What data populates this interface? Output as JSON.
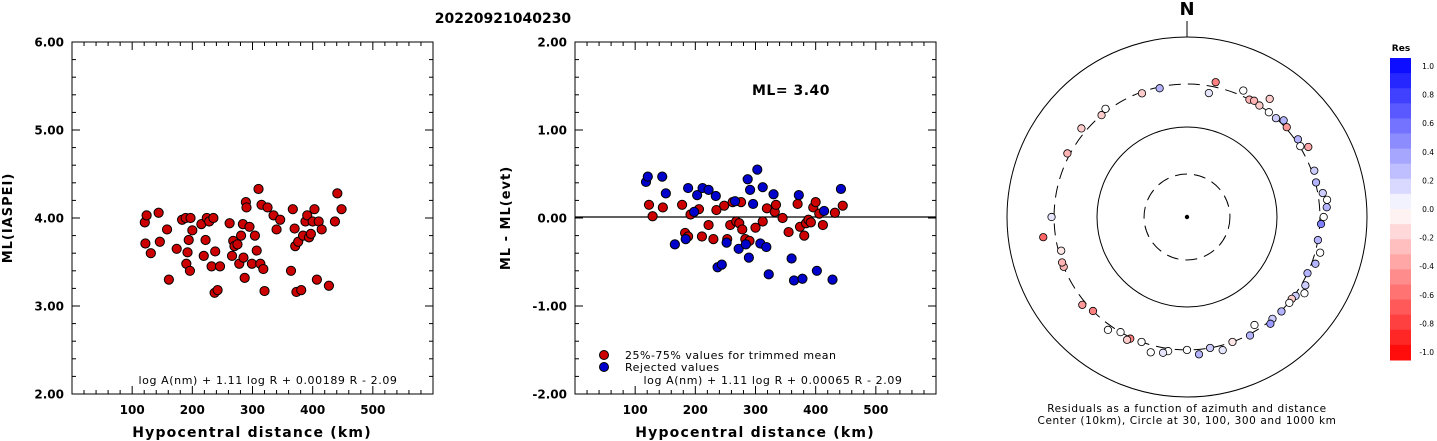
{
  "title": "20220921040230",
  "colors": {
    "accepted": "#cc0000",
    "rejected": "#0000cc"
  },
  "chart_data": [
    {
      "id": "left",
      "type": "scatter",
      "xlabel": "Hypocentral distance (km)",
      "ylabel": "ML(IASPEI)",
      "xlim": [
        0,
        600
      ],
      "ylim": [
        2.0,
        6.0
      ],
      "x_ticks": [
        100,
        200,
        300,
        400,
        500
      ],
      "x_tick_labels": [
        "100",
        "200",
        "300",
        "400",
        "500"
      ],
      "y_ticks": [
        2.0,
        3.0,
        4.0,
        5.0,
        6.0
      ],
      "y_tick_labels": [
        "2.00",
        "3.00",
        "4.00",
        "5.00",
        "6.00"
      ],
      "formula": "log A(nm) + 1.11 log R + 0.00189 R - 2.09",
      "points": [
        [
          121,
          3.95
        ],
        [
          124,
          4.03
        ],
        [
          122,
          3.71
        ],
        [
          131,
          3.6
        ],
        [
          144,
          4.06
        ],
        [
          146,
          3.73
        ],
        [
          158,
          3.87
        ],
        [
          161,
          3.3
        ],
        [
          174,
          3.65
        ],
        [
          183,
          3.98
        ],
        [
          189,
          4.0
        ],
        [
          190,
          3.48
        ],
        [
          192,
          3.61
        ],
        [
          194,
          3.75
        ],
        [
          196,
          3.4
        ],
        [
          197,
          4.0
        ],
        [
          200,
          3.86
        ],
        [
          215,
          3.93
        ],
        [
          219,
          3.57
        ],
        [
          222,
          3.75
        ],
        [
          224,
          4.0
        ],
        [
          228,
          3.96
        ],
        [
          232,
          3.45
        ],
        [
          235,
          4.0
        ],
        [
          237,
          3.15
        ],
        [
          238,
          3.62
        ],
        [
          242,
          3.18
        ],
        [
          246,
          3.45
        ],
        [
          262,
          3.94
        ],
        [
          266,
          3.57
        ],
        [
          268,
          3.74
        ],
        [
          270,
          3.68
        ],
        [
          275,
          3.7
        ],
        [
          278,
          3.48
        ],
        [
          281,
          3.8
        ],
        [
          284,
          3.93
        ],
        [
          285,
          3.55
        ],
        [
          287,
          3.32
        ],
        [
          289,
          4.18
        ],
        [
          290,
          4.12
        ],
        [
          295,
          3.9
        ],
        [
          299,
          3.48
        ],
        [
          304,
          3.8
        ],
        [
          307,
          3.63
        ],
        [
          310,
          4.33
        ],
        [
          313,
          3.48
        ],
        [
          315,
          4.15
        ],
        [
          318,
          3.42
        ],
        [
          320,
          3.17
        ],
        [
          325,
          4.12
        ],
        [
          335,
          4.03
        ],
        [
          340,
          3.87
        ],
        [
          346,
          3.98
        ],
        [
          364,
          3.4
        ],
        [
          367,
          4.1
        ],
        [
          370,
          3.88
        ],
        [
          371,
          3.68
        ],
        [
          373,
          3.16
        ],
        [
          376,
          3.73
        ],
        [
          381,
          3.18
        ],
        [
          384,
          3.8
        ],
        [
          388,
          3.96
        ],
        [
          391,
          4.03
        ],
        [
          394,
          3.78
        ],
        [
          397,
          3.82
        ],
        [
          400,
          3.96
        ],
        [
          403,
          4.1
        ],
        [
          407,
          3.3
        ],
        [
          410,
          3.96
        ],
        [
          415,
          3.87
        ],
        [
          427,
          3.23
        ],
        [
          437,
          3.96
        ],
        [
          441,
          4.28
        ],
        [
          448,
          4.1
        ]
      ]
    },
    {
      "id": "middle",
      "type": "scatter",
      "xlabel": "Hypocentral distance (km)",
      "ylabel": "ML - ML(evt)",
      "xlim": [
        0,
        600
      ],
      "ylim": [
        -2.0,
        2.0
      ],
      "x_ticks": [
        100,
        200,
        300,
        400,
        500
      ],
      "x_tick_labels": [
        "100",
        "200",
        "300",
        "400",
        "500"
      ],
      "y_ticks": [
        -2.0,
        -1.0,
        0.0,
        1.0,
        2.0
      ],
      "y_tick_labels": [
        "-2.00",
        "-1.00",
        "0.00",
        "1.00",
        "2.00"
      ],
      "annotation": "ML= 3.40",
      "formula": "log A(nm) + 1.11 log R + 0.00065 R - 2.09",
      "legend": [
        {
          "label": "25%-75% values for trimmed mean",
          "color": "#cc0000"
        },
        {
          "label": "Rejected values",
          "color": "#0000cc"
        }
      ],
      "series": [
        {
          "name": "25%-75% values for trimmed mean",
          "color": "#cc0000",
          "points": [
            [
              123,
              0.15
            ],
            [
              129,
              0.02
            ],
            [
              146,
              0.12
            ],
            [
              178,
              0.15
            ],
            [
              183,
              -0.17
            ],
            [
              188,
              -0.21
            ],
            [
              192,
              0.04
            ],
            [
              206,
              0.1
            ],
            [
              211,
              -0.21
            ],
            [
              222,
              -0.08
            ],
            [
              230,
              -0.24
            ],
            [
              235,
              0.09
            ],
            [
              248,
              0.14
            ],
            [
              253,
              -0.24
            ],
            [
              258,
              -0.08
            ],
            [
              262,
              0.18
            ],
            [
              268,
              -0.04
            ],
            [
              273,
              -0.06
            ],
            [
              276,
              0.18
            ],
            [
              278,
              -0.13
            ],
            [
              283,
              -0.24
            ],
            [
              290,
              -0.26
            ],
            [
              300,
              -0.11
            ],
            [
              312,
              -0.04
            ],
            [
              319,
              0.11
            ],
            [
              332,
              0.07
            ],
            [
              334,
              0.15
            ],
            [
              345,
              0.0
            ],
            [
              355,
              -0.16
            ],
            [
              370,
              0.16
            ],
            [
              374,
              -0.1
            ],
            [
              381,
              -0.2
            ],
            [
              384,
              -0.06
            ],
            [
              388,
              -0.02
            ],
            [
              392,
              -0.05
            ],
            [
              396,
              0.12
            ],
            [
              400,
              0.18
            ],
            [
              406,
              0.05
            ],
            [
              412,
              -0.08
            ],
            [
              432,
              0.06
            ],
            [
              445,
              0.14
            ]
          ]
        },
        {
          "name": "Rejected values",
          "color": "#0000cc",
          "points": [
            [
              118,
              0.41
            ],
            [
              121,
              0.47
            ],
            [
              145,
              0.47
            ],
            [
              151,
              0.28
            ],
            [
              166,
              -0.3
            ],
            [
              184,
              -0.24
            ],
            [
              188,
              0.34
            ],
            [
              198,
              0.07
            ],
            [
              203,
              0.26
            ],
            [
              212,
              0.34
            ],
            [
              222,
              0.32
            ],
            [
              234,
              0.25
            ],
            [
              237,
              -0.56
            ],
            [
              244,
              -0.53
            ],
            [
              252,
              -0.28
            ],
            [
              266,
              0.19
            ],
            [
              272,
              -0.35
            ],
            [
              284,
              -0.3
            ],
            [
              287,
              0.44
            ],
            [
              289,
              -0.45
            ],
            [
              291,
              0.32
            ],
            [
              296,
              0.16
            ],
            [
              303,
              0.55
            ],
            [
              308,
              -0.29
            ],
            [
              312,
              0.35
            ],
            [
              318,
              -0.33
            ],
            [
              322,
              -0.64
            ],
            [
              330,
              0.27
            ],
            [
              360,
              -0.46
            ],
            [
              364,
              -0.71
            ],
            [
              372,
              0.26
            ],
            [
              378,
              -0.69
            ],
            [
              402,
              -0.6
            ],
            [
              414,
              0.08
            ],
            [
              428,
              -0.7
            ],
            [
              442,
              0.33
            ]
          ]
        }
      ]
    },
    {
      "id": "polar",
      "type": "scatter",
      "subtype": "polar residuals by azimuth and distance",
      "north_label": "N",
      "caption_line1": "Residuals as a function of azimuth and distance",
      "caption_line2": "Center (10km), Circle at 30, 100, 300 and 1000 km",
      "circles_km": [
        30,
        100,
        300,
        1000
      ],
      "circles_dashed": [
        true,
        false,
        true,
        false
      ],
      "colorbar": {
        "title": "Res",
        "ticks": [
          "1.0",
          "0.8",
          "0.6",
          "0.4",
          "0.2",
          "0.0",
          "-0.2",
          "-0.4",
          "-0.6",
          "-0.8",
          "-1.0"
        ]
      },
      "points": [
        {
          "az": 12,
          "km": 340,
          "res": -0.5
        },
        {
          "az": 10,
          "km": 250,
          "res": 0.1
        },
        {
          "az": 24,
          "km": 345,
          "res": 0.0
        },
        {
          "az": 28,
          "km": 300,
          "res": -0.3
        },
        {
          "az": 35,
          "km": 400,
          "res": -0.2
        },
        {
          "az": 30,
          "km": 310,
          "res": -0.3
        },
        {
          "az": 33,
          "km": 300,
          "res": -0.2
        },
        {
          "az": 38,
          "km": 300,
          "res": 0.0
        },
        {
          "az": 42,
          "km": 300,
          "res": 0.2
        },
        {
          "az": 45,
          "km": 330,
          "res": 0.3
        },
        {
          "az": 48,
          "km": 310,
          "res": -0.4
        },
        {
          "az": 55,
          "km": 320,
          "res": 0.3
        },
        {
          "az": 58,
          "km": 305,
          "res": 0.0
        },
        {
          "az": 60,
          "km": 360,
          "res": -0.35
        },
        {
          "az": 70,
          "km": 320,
          "res": 0.2
        },
        {
          "az": 75,
          "km": 305,
          "res": 0.3
        },
        {
          "az": 80,
          "km": 340,
          "res": 0.2
        },
        {
          "az": 83,
          "km": 370,
          "res": 0.0
        },
        {
          "az": 86,
          "km": 360,
          "res": 0.3
        },
        {
          "az": 90,
          "km": 330,
          "res": 0.0
        },
        {
          "az": 93,
          "km": 310,
          "res": 0.5
        },
        {
          "az": 100,
          "km": 300,
          "res": 0.3
        },
        {
          "az": 105,
          "km": 340,
          "res": 0.0
        },
        {
          "az": 110,
          "km": 330,
          "res": 0.3
        },
        {
          "az": 115,
          "km": 300,
          "res": 0.3
        },
        {
          "az": 120,
          "km": 330,
          "res": 0.2
        },
        {
          "az": 123,
          "km": 360,
          "res": 0.0
        },
        {
          "az": 126,
          "km": 310,
          "res": 0.2
        },
        {
          "az": 128,
          "km": 300,
          "res": -0.2
        },
        {
          "az": 130,
          "km": 305,
          "res": 0.0
        },
        {
          "az": 135,
          "km": 305,
          "res": 0.3
        },
        {
          "az": 140,
          "km": 300,
          "res": 0.2
        },
        {
          "az": 142,
          "km": 320,
          "res": 0.4
        },
        {
          "az": 148,
          "km": 260,
          "res": 0.0
        },
        {
          "az": 152,
          "km": 310,
          "res": 0.3
        },
        {
          "az": 160,
          "km": 300,
          "res": -0.1
        },
        {
          "az": 165,
          "km": 340,
          "res": 0.1
        },
        {
          "az": 170,
          "km": 300,
          "res": 0.2
        },
        {
          "az": 175,
          "km": 340,
          "res": 0.3
        },
        {
          "az": 180,
          "km": 300,
          "res": 0.0
        },
        {
          "az": 188,
          "km": 320,
          "res": 0.0
        },
        {
          "az": 190,
          "km": 340,
          "res": 0.1
        },
        {
          "az": 195,
          "km": 360,
          "res": 0.0
        },
        {
          "az": 200,
          "km": 300,
          "res": 0.0
        },
        {
          "az": 205,
          "km": 310,
          "res": -0.5
        },
        {
          "az": 206,
          "km": 330,
          "res": -0.2
        },
        {
          "az": 210,
          "km": 300,
          "res": 0.0
        },
        {
          "az": 215,
          "km": 340,
          "res": 0.0
        },
        {
          "az": 225,
          "km": 300,
          "res": -0.5
        },
        {
          "az": 230,
          "km": 330,
          "res": -0.4
        },
        {
          "az": 248,
          "km": 300,
          "res": -0.3
        },
        {
          "az": 250,
          "km": 300,
          "res": -0.3
        },
        {
          "az": 255,
          "km": 280,
          "res": -0.1
        },
        {
          "az": 262,
          "km": 410,
          "res": -0.6
        },
        {
          "az": 270,
          "km": 320,
          "res": 0.1
        },
        {
          "az": 298,
          "km": 320,
          "res": -0.3
        },
        {
          "az": 310,
          "km": 340,
          "res": -0.2
        },
        {
          "az": 320,
          "km": 300,
          "res": -0.2
        },
        {
          "az": 323,
          "km": 320,
          "res": 0.0
        },
        {
          "az": 340,
          "km": 290,
          "res": -0.2
        },
        {
          "az": 348,
          "km": 290,
          "res": 0.3
        }
      ]
    }
  ]
}
